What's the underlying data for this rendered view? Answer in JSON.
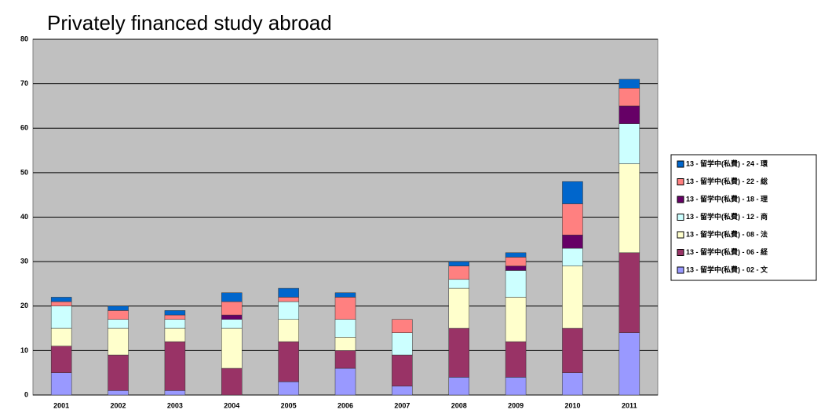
{
  "chart_data": {
    "type": "stacked_bar",
    "subtitle": "Privately financed study abroad",
    "categories": [
      "2001",
      "2002",
      "2003",
      "2004",
      "2005",
      "2006",
      "2007",
      "2008",
      "2009",
      "2010",
      "2011"
    ],
    "series": [
      {
        "name": "13 - 留学中(私費) - 02 - 文",
        "color": "#9999ff",
        "values": [
          5,
          1,
          1,
          0,
          3,
          6,
          2,
          4,
          4,
          5,
          14
        ]
      },
      {
        "name": "13 - 留学中(私費) - 06 - 経",
        "color": "#993366",
        "values": [
          6,
          8,
          11,
          6,
          9,
          4,
          7,
          11,
          8,
          10,
          18
        ]
      },
      {
        "name": "13 - 留学中(私費) - 08 - 法",
        "color": "#ffffcc",
        "values": [
          4,
          6,
          3,
          9,
          5,
          3,
          0,
          9,
          10,
          14,
          20
        ]
      },
      {
        "name": "13 - 留学中(私費) - 12 - 商",
        "color": "#ccffff",
        "values": [
          5,
          2,
          2,
          2,
          4,
          4,
          5,
          2,
          6,
          4,
          9
        ]
      },
      {
        "name": "13 - 留学中(私費) - 18 - 理",
        "color": "#660066",
        "values": [
          0,
          0,
          0,
          1,
          0,
          0,
          0,
          0,
          1,
          3,
          4
        ]
      },
      {
        "name": "13 - 留学中(私費) - 22 - 総",
        "color": "#ff8080",
        "values": [
          1,
          2,
          1,
          3,
          1,
          5,
          3,
          3,
          2,
          7,
          4
        ]
      },
      {
        "name": "13 - 留学中(私費) - 24 - 環",
        "color": "#0066cc",
        "values": [
          1,
          1,
          1,
          2,
          2,
          1,
          0,
          1,
          1,
          5,
          2
        ]
      }
    ],
    "ylim": [
      0,
      80
    ],
    "yticks": [
      0,
      10,
      20,
      30,
      40,
      50,
      60,
      70,
      80
    ],
    "grid": true,
    "plot_background": "#c0c0c0",
    "legend": "right"
  }
}
